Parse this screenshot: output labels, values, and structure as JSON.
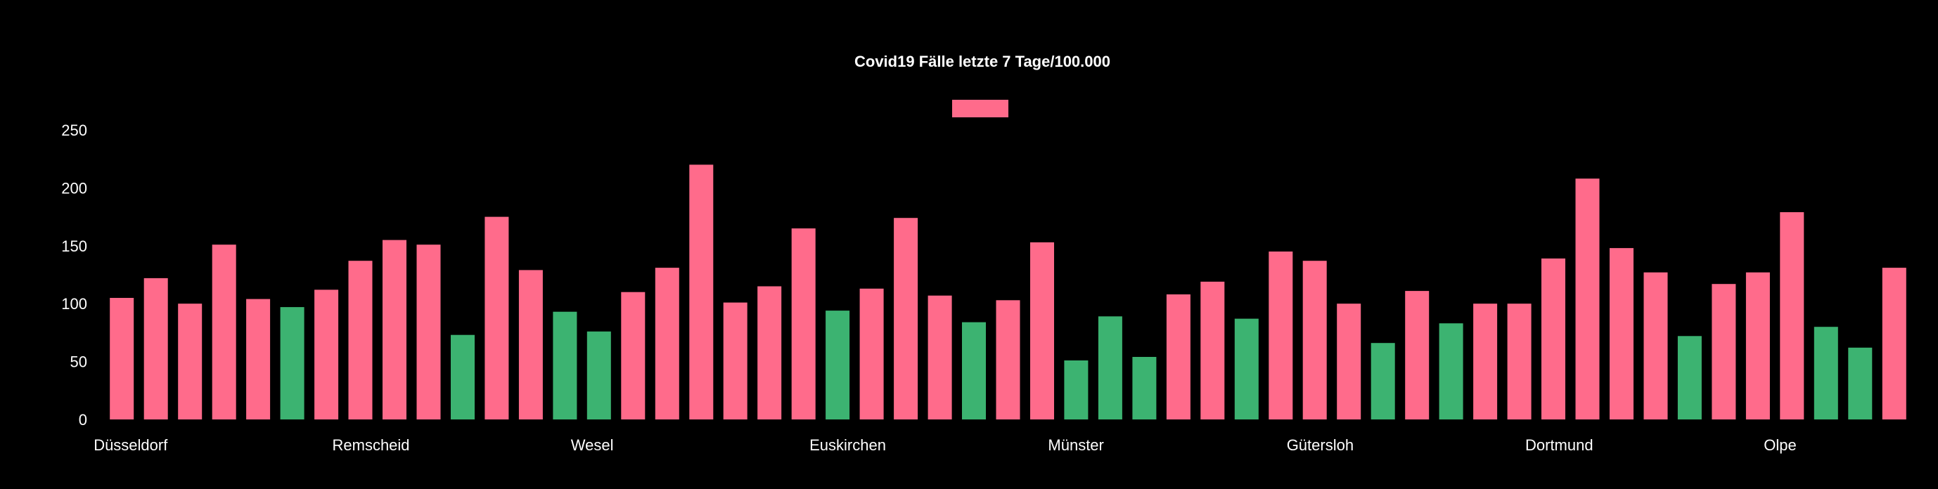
{
  "chart_data": {
    "type": "bar",
    "title": "Covid19 Fälle letzte 7 Tage/100.000",
    "xlabel": "",
    "ylabel": "",
    "ylim": [
      0,
      250
    ],
    "yticks": [
      0,
      50,
      100,
      150,
      200,
      250
    ],
    "grid": false,
    "legend": {
      "position": "top-center",
      "entries": [
        {
          "name": "",
          "color": "#ff6b8b"
        }
      ]
    },
    "colors": {
      "high": "#ff6b8b",
      "low": "#3cb371",
      "background": "#000000",
      "text": "#ffffff"
    },
    "x_tick_labels": [
      {
        "index": 0,
        "label": "Düsseldorf"
      },
      {
        "index": 7,
        "label": "Remscheid"
      },
      {
        "index": 14,
        "label": "Wesel"
      },
      {
        "index": 21,
        "label": "Euskirchen"
      },
      {
        "index": 28,
        "label": "Münster"
      },
      {
        "index": 35,
        "label": "Gütersloh"
      },
      {
        "index": 42,
        "label": "Dortmund"
      },
      {
        "index": 49,
        "label": "Olpe"
      }
    ],
    "series": [
      {
        "values": [
          105,
          122,
          100,
          151,
          104,
          97,
          112,
          137,
          155,
          151,
          73,
          175,
          129,
          93,
          76,
          110,
          131,
          220,
          101,
          115,
          165,
          94,
          113,
          174,
          107,
          84,
          103,
          153,
          51,
          89,
          54,
          108,
          119,
          87,
          145,
          137,
          100,
          66,
          111,
          83,
          100,
          100,
          139,
          208,
          148,
          127,
          72,
          117,
          127,
          179,
          80,
          62,
          131
        ],
        "colors": [
          "high",
          "high",
          "high",
          "high",
          "high",
          "low",
          "high",
          "high",
          "high",
          "high",
          "low",
          "high",
          "high",
          "low",
          "low",
          "high",
          "high",
          "high",
          "high",
          "high",
          "high",
          "low",
          "high",
          "high",
          "high",
          "low",
          "high",
          "high",
          "low",
          "low",
          "low",
          "high",
          "high",
          "low",
          "high",
          "high",
          "high",
          "low",
          "high",
          "low",
          "high",
          "high",
          "high",
          "high",
          "high",
          "high",
          "low",
          "high",
          "high",
          "high",
          "low",
          "low",
          "high"
        ]
      }
    ]
  }
}
